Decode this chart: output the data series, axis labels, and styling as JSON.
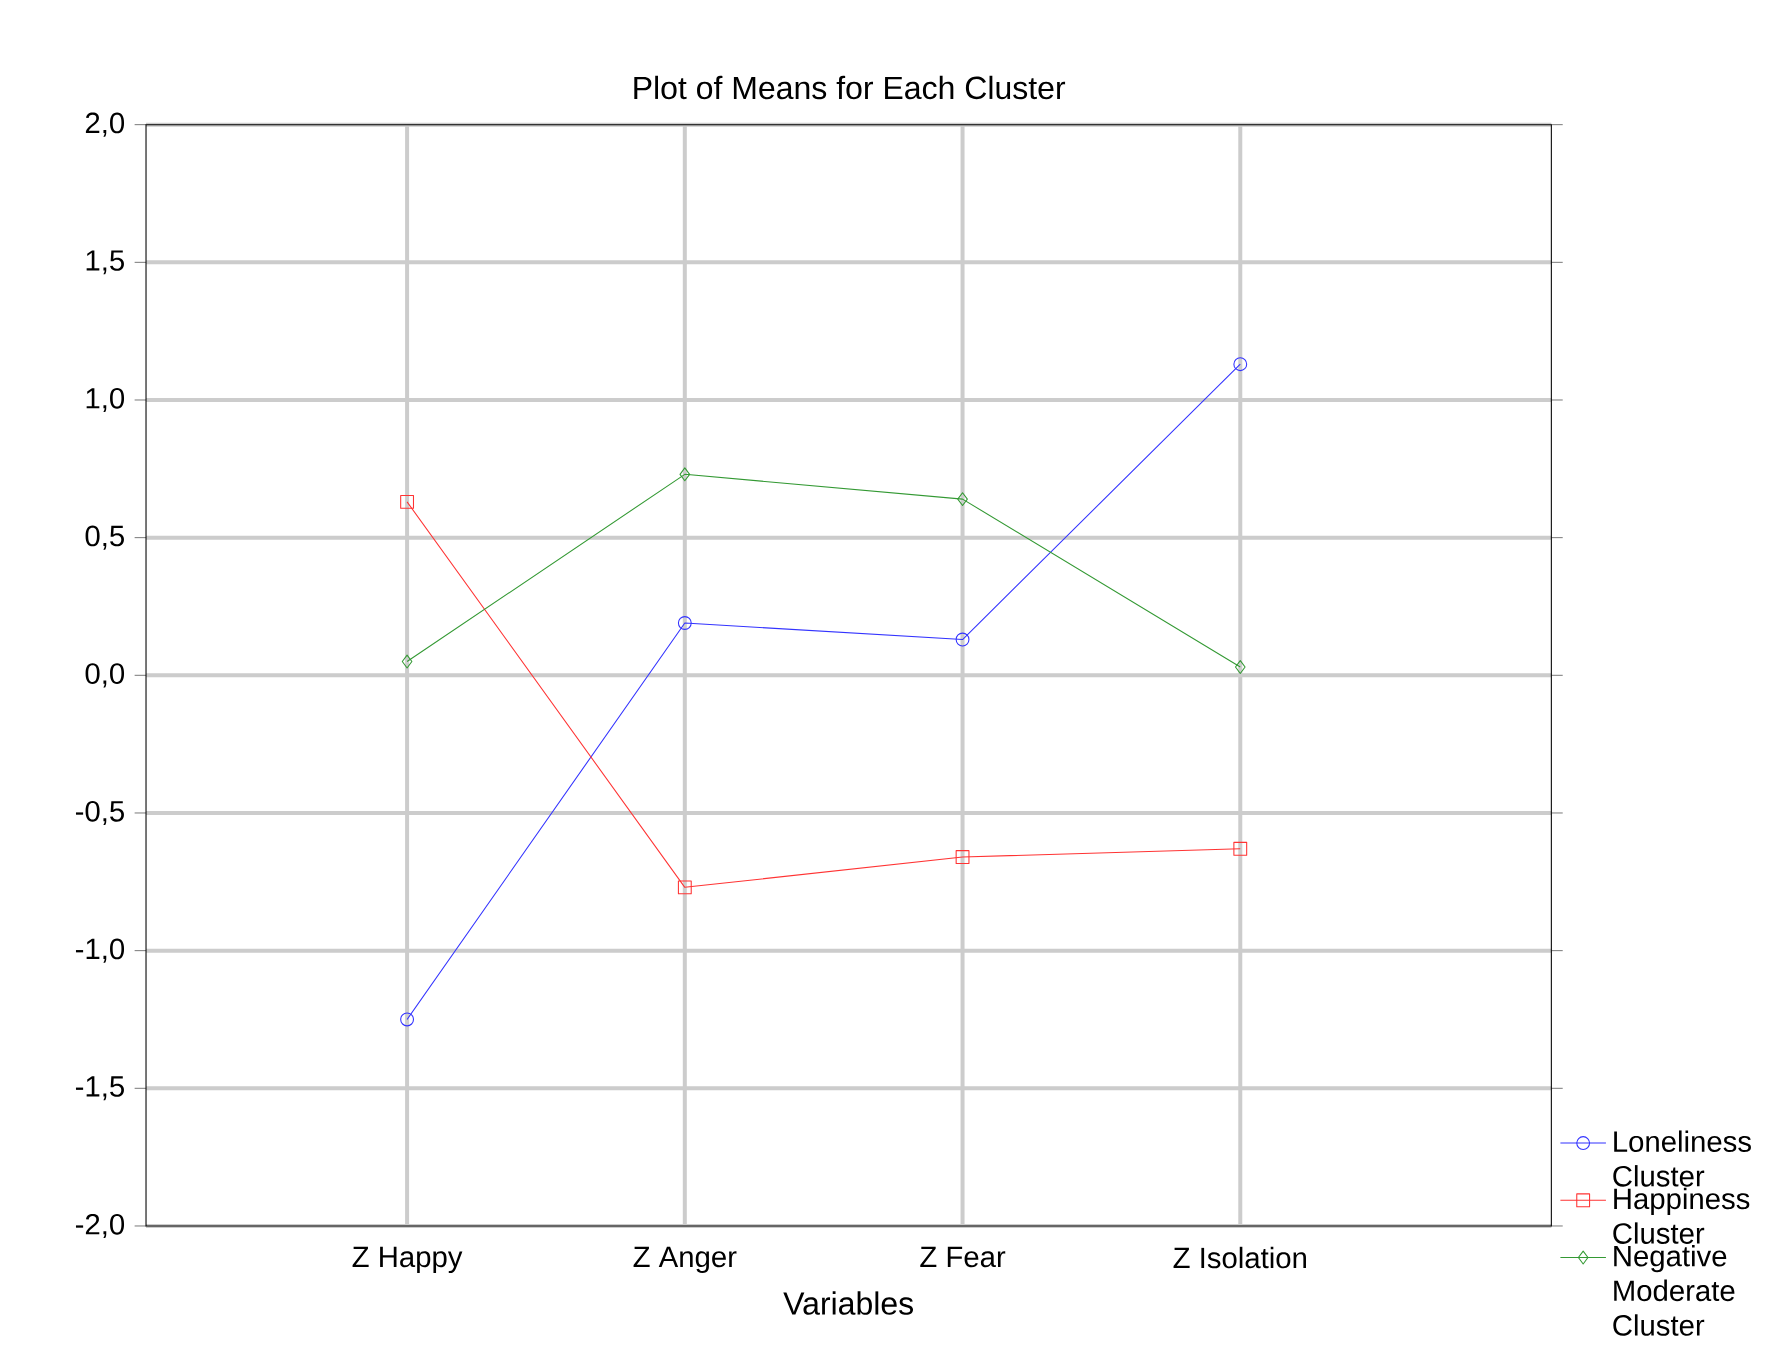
{
  "chart_data": {
    "type": "line",
    "title": "Plot of Means for Each Cluster",
    "xlabel": "Variables",
    "categories": [
      "Z Happy",
      "Z Anger",
      "Z Fear",
      "Z Isolation"
    ],
    "series": [
      {
        "name": "Loneliness Cluster",
        "color": "#3333ff",
        "marker": "circle",
        "values": [
          -1.25,
          0.19,
          0.13,
          1.13
        ]
      },
      {
        "name": "Happiness Cluster",
        "color": "#ff3333",
        "marker": "square",
        "values": [
          0.63,
          -0.77,
          -0.66,
          -0.63
        ]
      },
      {
        "name": "Negative Moderate Cluster",
        "color": "#339933",
        "marker": "diamond",
        "values": [
          0.05,
          0.73,
          0.64,
          0.03
        ]
      }
    ],
    "ylim": [
      -2,
      2
    ],
    "yticks": [
      {
        "value": -2,
        "label": "-2,0"
      },
      {
        "value": -1.5,
        "label": "-1,5"
      },
      {
        "value": -1,
        "label": "-1,0"
      },
      {
        "value": -0.5,
        "label": "-0,5"
      },
      {
        "value": 0,
        "label": "0,0"
      },
      {
        "value": 0.5,
        "label": "0,5"
      },
      {
        "value": 1,
        "label": "1,0"
      },
      {
        "value": 1.5,
        "label": "1,5"
      },
      {
        "value": 2,
        "label": "2,0"
      }
    ],
    "grid": true,
    "legend": "bottom right",
    "line_style": "solid"
  }
}
